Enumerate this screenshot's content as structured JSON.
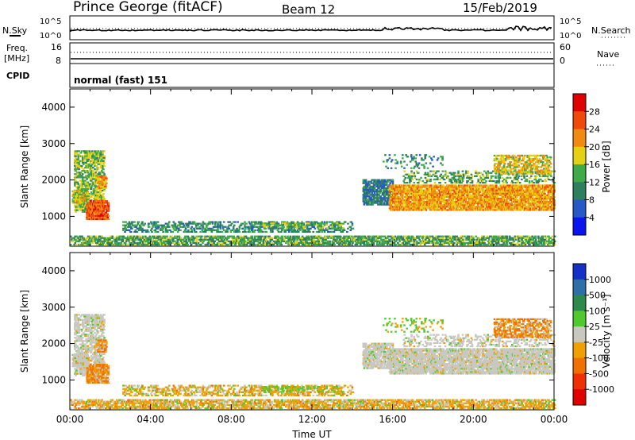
{
  "header": {
    "station": "Prince George (fitACF)",
    "beam": "Beam 12",
    "date": "15/Feb/2019"
  },
  "top_panels": {
    "nsky_label": "N.Sky",
    "nsearch_label": "N.Search",
    "noise_ticks": [
      "10^5",
      "10^0"
    ],
    "freq_label_line1": "Freq.",
    "freq_label_line2": "[MHz]",
    "freq_ticks": [
      "16",
      "8"
    ],
    "nave_label": "Nave",
    "nave_ticks": [
      "60",
      "0"
    ],
    "cpid_label": "CPID",
    "cpid_value": "normal (fast) 151"
  },
  "chart_data": [
    {
      "type": "heatmap",
      "name": "power",
      "ylabel": "Slant Range [km]",
      "xlabel": "",
      "ylim": [
        180,
        4500
      ],
      "xlim": [
        0,
        24
      ],
      "yticks": [
        "1000",
        "2000",
        "3000",
        "4000"
      ],
      "colorbar": {
        "label": "Power [dB]",
        "ticks": [
          "4",
          "8",
          "12",
          "16",
          "20",
          "24",
          "28"
        ],
        "range": [
          0,
          32
        ],
        "colors": [
          "#0a14f0",
          "#2858c8",
          "#2f7f5e",
          "#3faa4a",
          "#e6d012",
          "#f08a10",
          "#f04a0a",
          "#e00000"
        ]
      }
    },
    {
      "type": "heatmap",
      "name": "velocity",
      "ylabel": "Slant Range [km]",
      "xlabel": "Time UT",
      "ylim": [
        180,
        4500
      ],
      "xlim": [
        0,
        24
      ],
      "yticks": [
        "1000",
        "2000",
        "3000",
        "4000"
      ],
      "xticks": [
        "00:00",
        "04:00",
        "08:00",
        "12:00",
        "16:00",
        "20:00",
        "00:00"
      ],
      "colorbar": {
        "label": "Velocity [m s⁻¹]",
        "ticks": [
          "1000",
          "500",
          "100",
          "25",
          "-25",
          "-100",
          "-500",
          "-1000"
        ],
        "colors": [
          "#1530c8",
          "#2f6fa8",
          "#2e8a4a",
          "#50c830",
          "#c8c8c0",
          "#f0a000",
          "#f07000",
          "#f03000",
          "#e00000"
        ]
      }
    }
  ]
}
